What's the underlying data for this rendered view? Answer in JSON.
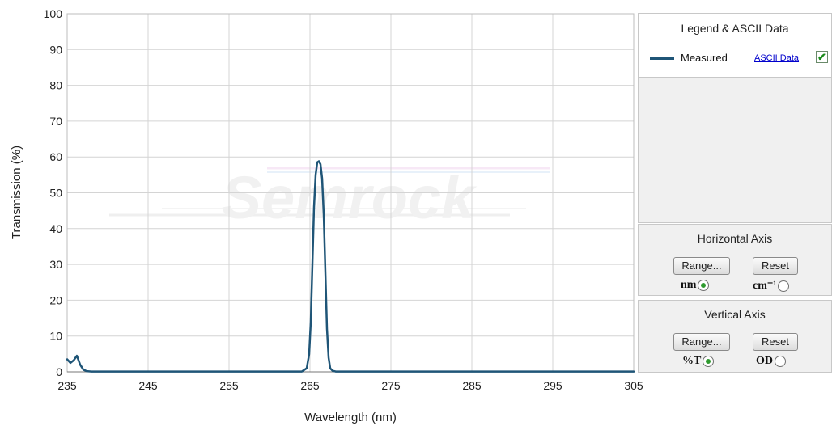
{
  "chart_data": {
    "type": "line",
    "title": "",
    "xlabel": "Wavelength (nm)",
    "ylabel": "Transmission (%)",
    "xlim": [
      235,
      305
    ],
    "ylim": [
      0,
      100
    ],
    "x_ticks": [
      235,
      245,
      255,
      265,
      275,
      285,
      295,
      305
    ],
    "y_ticks": [
      0,
      10,
      20,
      30,
      40,
      50,
      60,
      70,
      80,
      90,
      100
    ],
    "grid": true,
    "legend_position": "right",
    "series": [
      {
        "name": "Measured",
        "color": "#1f5577",
        "x": [
          235,
          235.4,
          235.8,
          236.2,
          236.6,
          237,
          237.4,
          238,
          240,
          250,
          260,
          264,
          264.6,
          264.9,
          265.1,
          265.3,
          265.5,
          265.7,
          265.9,
          266.1,
          266.3,
          266.5,
          266.7,
          266.9,
          267.1,
          267.3,
          267.5,
          267.8,
          268.2,
          270,
          280,
          290,
          305
        ],
        "y": [
          3.5,
          2.5,
          3.2,
          4.5,
          2,
          0.6,
          0.2,
          0.1,
          0.1,
          0.1,
          0.1,
          0.1,
          1,
          5,
          14,
          30,
          46,
          55,
          58.5,
          58.8,
          58,
          54,
          44,
          28,
          12,
          4,
          1,
          0.3,
          0.1,
          0.1,
          0.1,
          0.1,
          0.1
        ]
      }
    ]
  },
  "watermark": "Semrock",
  "legend_panel": {
    "title": "Legend & ASCII Data",
    "entry_label": "Measured",
    "ascii_link": "ASCII Data",
    "checkbox_mark": "✔"
  },
  "horizontal_axis_panel": {
    "title": "Horizontal Axis",
    "range_label": "Range...",
    "reset_label": "Reset",
    "option1": "nm",
    "option2": "cm⁻¹"
  },
  "vertical_axis_panel": {
    "title": "Vertical  Axis",
    "range_label": "Range...",
    "reset_label": "Reset",
    "option1": "%T",
    "option2": "OD"
  }
}
